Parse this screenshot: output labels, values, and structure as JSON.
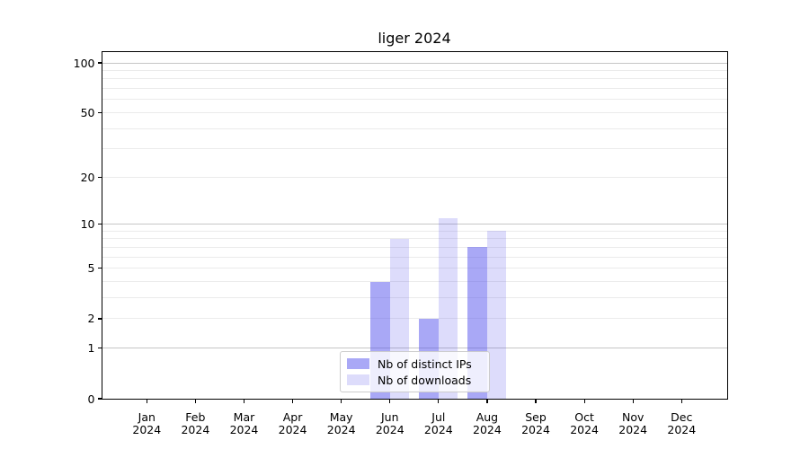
{
  "chart_data": {
    "type": "bar",
    "title": "liger 2024",
    "categories": [
      {
        "month": "Jan",
        "year": "2024"
      },
      {
        "month": "Feb",
        "year": "2024"
      },
      {
        "month": "Mar",
        "year": "2024"
      },
      {
        "month": "Apr",
        "year": "2024"
      },
      {
        "month": "May",
        "year": "2024"
      },
      {
        "month": "Jun",
        "year": "2024"
      },
      {
        "month": "Jul",
        "year": "2024"
      },
      {
        "month": "Aug",
        "year": "2024"
      },
      {
        "month": "Sep",
        "year": "2024"
      },
      {
        "month": "Oct",
        "year": "2024"
      },
      {
        "month": "Nov",
        "year": "2024"
      },
      {
        "month": "Dec",
        "year": "2024"
      }
    ],
    "series": [
      {
        "name": "Nb of distinct IPs",
        "color": "rgba(84,82,237,0.5)",
        "values": [
          0,
          0,
          0,
          0,
          0,
          4,
          2,
          7,
          0,
          0,
          0,
          0
        ]
      },
      {
        "name": "Nb of downloads",
        "color": "rgba(84,82,237,0.2)",
        "values": [
          0,
          0,
          0,
          0,
          0,
          8,
          11,
          9,
          0,
          0,
          0,
          0
        ]
      }
    ],
    "y_axis": {
      "scale": "log1p",
      "lim": [
        0,
        100
      ],
      "labeled_ticks": [
        0,
        1,
        2,
        5,
        10,
        20,
        50,
        100
      ],
      "major_gridlines": [
        1,
        10,
        100
      ],
      "minor_gridlines": [
        2,
        3,
        4,
        5,
        6,
        7,
        8,
        9,
        20,
        30,
        40,
        50,
        60,
        70,
        80,
        90
      ]
    },
    "legend_position": "bottom-center",
    "grid": "horizontal-only"
  },
  "colors": {
    "background": "#ffffff",
    "axis_frame": "#000000",
    "grid_major": "#c6c6c6",
    "grid_minor": "#ebebeb",
    "text": "#000000",
    "legend_border": "#cccccc",
    "legend_background": "rgba(255,255,255,0.8)",
    "bar_distinct_ips": "rgba(84,82,237,0.5)",
    "bar_downloads": "rgba(84,82,237,0.2)"
  }
}
